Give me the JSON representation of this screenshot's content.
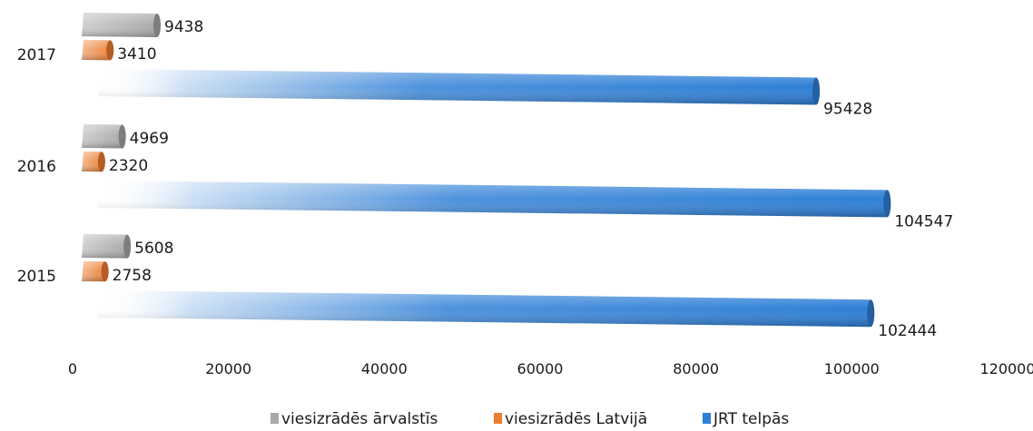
{
  "chart_data": {
    "type": "bar",
    "orientation": "horizontal",
    "categories": [
      "2017",
      "2016",
      "2015"
    ],
    "series": [
      {
        "name": "viesizrādēs ārvalstīs",
        "values": [
          9438,
          4969,
          5608
        ],
        "color": "#a8a8a8",
        "value_labels": [
          "9438",
          "4969",
          "5608"
        ]
      },
      {
        "name": "viesizrādēs Latvijā",
        "values": [
          3410,
          2320,
          2758
        ],
        "color": "#ed7d31",
        "value_labels": [
          "3410",
          "2320",
          "2758"
        ]
      },
      {
        "name": "JRT telpās",
        "values": [
          95428,
          104547,
          102444
        ],
        "color": "#2e7fd6",
        "value_labels": [
          "95428",
          "104547",
          "102444"
        ]
      }
    ],
    "xlim": [
      0,
      120000
    ],
    "x_ticks": [
      0,
      20000,
      40000,
      60000,
      80000,
      100000,
      120000
    ],
    "x_tick_labels": [
      "0",
      "20000",
      "40000",
      "60000",
      "80000",
      "100000",
      "120000"
    ],
    "title": "",
    "xlabel": "",
    "ylabel": "",
    "grid": false,
    "legend_position": "bottom",
    "style": "3d-cylinder-gradient"
  }
}
